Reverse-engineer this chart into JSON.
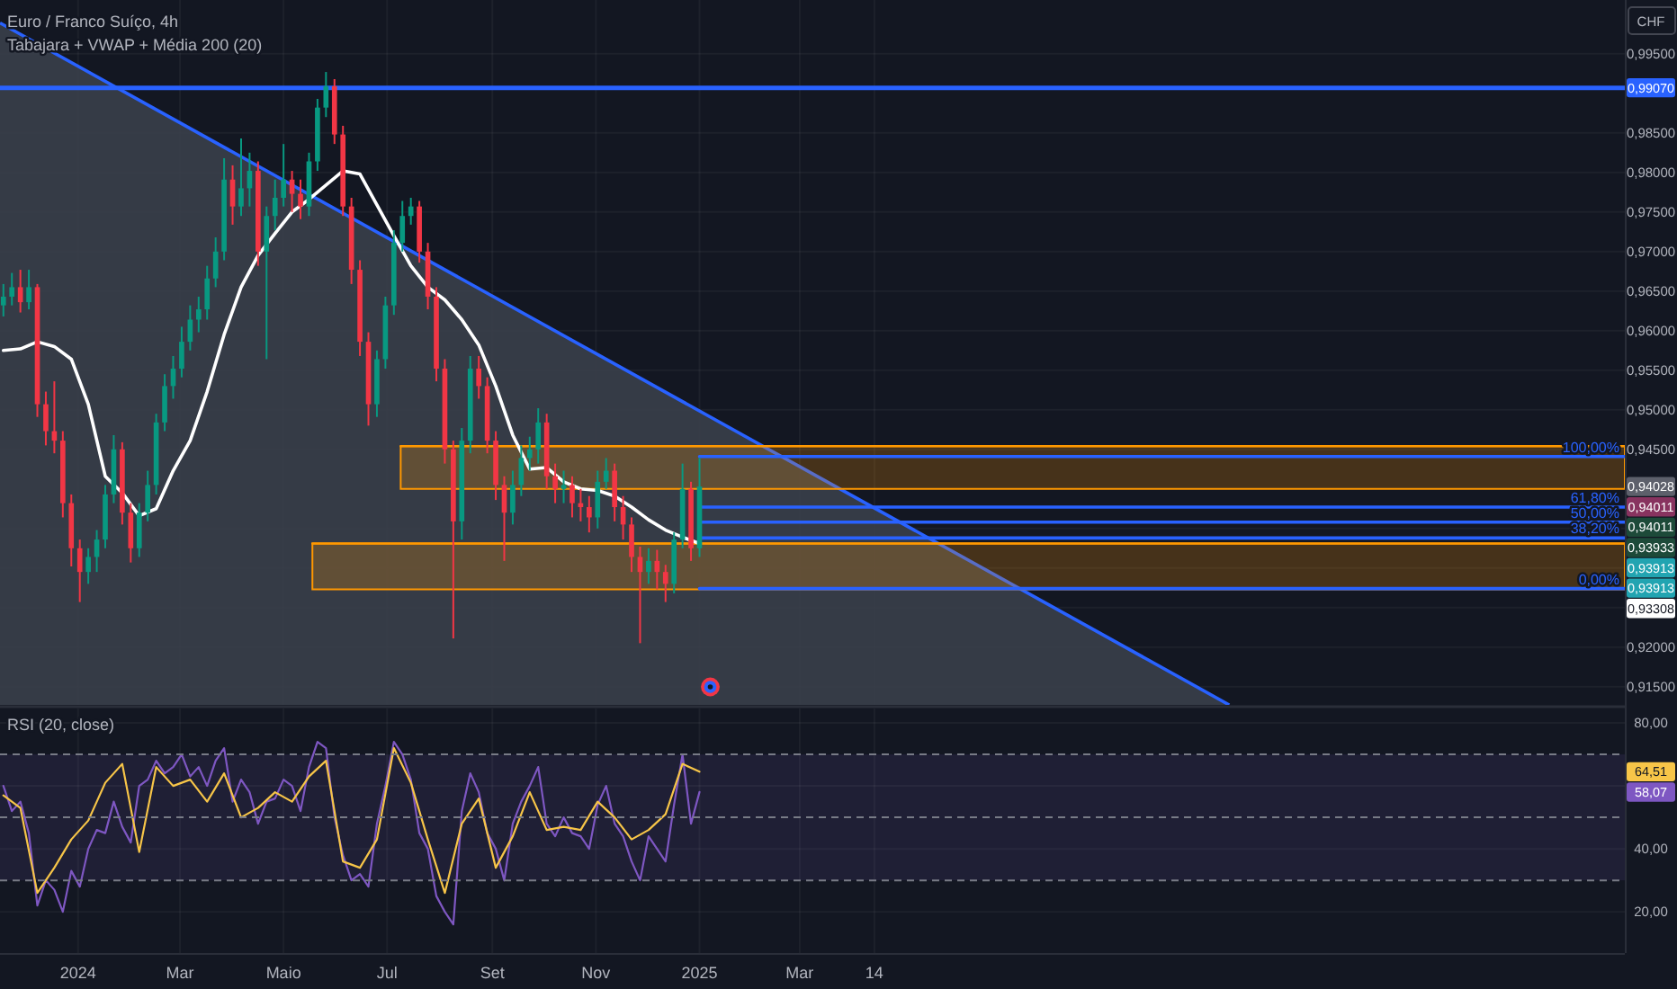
{
  "chart_data": [
    {
      "type": "candlestick",
      "title": "Euro / Franco Suíço, 4h",
      "subtitle": "Tabajara + VWAP + Média 200 (20)",
      "ylabel": "CHF",
      "x": [
        "2023-11-18",
        "2023-11-23",
        "2023-11-28",
        "2023-12-03",
        "2023-12-08",
        "2023-12-13",
        "2023-12-18",
        "2023-12-23",
        "2023-12-28",
        "2024-01-02",
        "2024-01-07",
        "2024-01-12",
        "2024-01-17",
        "2024-01-22",
        "2024-01-27",
        "2024-02-01",
        "2024-02-06",
        "2024-02-11",
        "2024-02-16",
        "2024-02-21",
        "2024-02-26",
        "2024-03-02",
        "2024-03-07",
        "2024-03-12",
        "2024-03-17",
        "2024-03-22",
        "2024-03-27",
        "2024-04-01",
        "2024-04-06",
        "2024-04-11",
        "2024-04-16",
        "2024-04-21",
        "2024-04-26",
        "2024-05-01",
        "2024-05-06",
        "2024-05-11",
        "2024-05-16",
        "2024-05-21",
        "2024-05-26",
        "2024-05-31",
        "2024-06-05",
        "2024-06-10",
        "2024-06-15",
        "2024-06-20",
        "2024-06-25",
        "2024-06-30",
        "2024-07-05",
        "2024-07-10",
        "2024-07-15",
        "2024-07-20",
        "2024-07-25",
        "2024-07-30",
        "2024-08-04",
        "2024-08-09",
        "2024-08-14",
        "2024-08-19",
        "2024-08-24",
        "2024-08-29",
        "2024-09-03",
        "2024-09-08",
        "2024-09-13",
        "2024-09-18",
        "2024-09-23",
        "2024-09-28",
        "2024-10-03",
        "2024-10-08",
        "2024-10-13",
        "2024-10-18",
        "2024-10-23",
        "2024-10-28",
        "2024-11-02",
        "2024-11-07",
        "2024-11-12",
        "2024-11-17",
        "2024-11-22",
        "2024-11-27",
        "2024-12-02",
        "2024-12-07",
        "2024-12-12",
        "2024-12-17",
        "2024-12-22",
        "2024-12-27",
        "2025-01-01"
      ],
      "ohlc": [
        [
          0.9632,
          0.9659,
          0.9618,
          0.9643
        ],
        [
          0.9643,
          0.9673,
          0.9632,
          0.9655
        ],
        [
          0.9655,
          0.9677,
          0.9623,
          0.9636
        ],
        [
          0.9636,
          0.9677,
          0.9627,
          0.9655
        ],
        [
          0.9655,
          0.9659,
          0.9491,
          0.9507
        ],
        [
          0.9507,
          0.9523,
          0.9455,
          0.9473
        ],
        [
          0.9473,
          0.9536,
          0.9445,
          0.9461
        ],
        [
          0.9461,
          0.9473,
          0.9364,
          0.9382
        ],
        [
          0.9382,
          0.9393,
          0.9302,
          0.9325
        ],
        [
          0.9325,
          0.9336,
          0.9257,
          0.9295
        ],
        [
          0.9295,
          0.9325,
          0.928,
          0.9314
        ],
        [
          0.9314,
          0.9348,
          0.9295,
          0.9336
        ],
        [
          0.9336,
          0.9405,
          0.9325,
          0.9393
        ],
        [
          0.9393,
          0.9468,
          0.9382,
          0.945
        ],
        [
          0.945,
          0.9459,
          0.9355,
          0.937
        ],
        [
          0.937,
          0.9382,
          0.9307,
          0.9325
        ],
        [
          0.9325,
          0.9382,
          0.9314,
          0.937
        ],
        [
          0.937,
          0.9423,
          0.9359,
          0.9405
        ],
        [
          0.9405,
          0.9495,
          0.9393,
          0.9484
        ],
        [
          0.9484,
          0.9545,
          0.9473,
          0.953
        ],
        [
          0.953,
          0.9568,
          0.9514,
          0.9552
        ],
        [
          0.9552,
          0.9605,
          0.9541,
          0.9586
        ],
        [
          0.9586,
          0.9632,
          0.9575,
          0.9614
        ],
        [
          0.9614,
          0.9643,
          0.9598,
          0.9627
        ],
        [
          0.9627,
          0.9682,
          0.9614,
          0.9666
        ],
        [
          0.9666,
          0.9718,
          0.9655,
          0.97
        ],
        [
          0.97,
          0.9818,
          0.9689,
          0.9791
        ],
        [
          0.9791,
          0.9809,
          0.9734,
          0.9757
        ],
        [
          0.9757,
          0.9843,
          0.9745,
          0.978
        ],
        [
          0.978,
          0.9825,
          0.9757,
          0.9802
        ],
        [
          0.9802,
          0.9814,
          0.9682,
          0.97
        ],
        [
          0.97,
          0.9757,
          0.9564,
          0.9745
        ],
        [
          0.9745,
          0.9791,
          0.9727,
          0.9768
        ],
        [
          0.9768,
          0.9836,
          0.9757,
          0.9791
        ],
        [
          0.9791,
          0.9802,
          0.975,
          0.9773
        ],
        [
          0.9773,
          0.9791,
          0.9741,
          0.9757
        ],
        [
          0.9757,
          0.9825,
          0.9745,
          0.9814
        ],
        [
          0.9814,
          0.9893,
          0.9802,
          0.9882
        ],
        [
          0.9882,
          0.9927,
          0.987,
          0.9909
        ],
        [
          0.9909,
          0.9918,
          0.9836,
          0.9848
        ],
        [
          0.9848,
          0.9859,
          0.9745,
          0.9757
        ],
        [
          0.9757,
          0.9768,
          0.9659,
          0.9677
        ],
        [
          0.9677,
          0.9689,
          0.9568,
          0.9586
        ],
        [
          0.9586,
          0.9598,
          0.948,
          0.9507
        ],
        [
          0.9507,
          0.9575,
          0.9491,
          0.9564
        ],
        [
          0.9564,
          0.9643,
          0.9552,
          0.9632
        ],
        [
          0.9632,
          0.9727,
          0.962,
          0.9711
        ],
        [
          0.9711,
          0.9764,
          0.97,
          0.9745
        ],
        [
          0.9745,
          0.9768,
          0.9734,
          0.9757
        ],
        [
          0.9757,
          0.9764,
          0.9686,
          0.97
        ],
        [
          0.97,
          0.9711,
          0.9627,
          0.9643
        ],
        [
          0.9643,
          0.9655,
          0.9536,
          0.9552
        ],
        [
          0.9552,
          0.9564,
          0.9432,
          0.945
        ],
        [
          0.945,
          0.9461,
          0.9211,
          0.9359
        ],
        [
          0.9359,
          0.9477,
          0.9336,
          0.9461
        ],
        [
          0.9461,
          0.9568,
          0.9445,
          0.9552
        ],
        [
          0.9552,
          0.9568,
          0.9514,
          0.953
        ],
        [
          0.953,
          0.9541,
          0.9445,
          0.9461
        ],
        [
          0.9461,
          0.9473,
          0.9386,
          0.9405
        ],
        [
          0.9405,
          0.9416,
          0.9309,
          0.937
        ],
        [
          0.937,
          0.9423,
          0.9355,
          0.9405
        ],
        [
          0.9405,
          0.9455,
          0.9391,
          0.9439
        ],
        [
          0.9439,
          0.9466,
          0.9423,
          0.945
        ],
        [
          0.945,
          0.9502,
          0.9432,
          0.9484
        ],
        [
          0.9484,
          0.9495,
          0.94,
          0.9416
        ],
        [
          0.9416,
          0.9432,
          0.9382,
          0.94
        ],
        [
          0.94,
          0.9423,
          0.9382,
          0.9405
        ],
        [
          0.9405,
          0.9416,
          0.9364,
          0.9382
        ],
        [
          0.9382,
          0.94,
          0.9359,
          0.9377
        ],
        [
          0.9377,
          0.9391,
          0.9345,
          0.9364
        ],
        [
          0.9364,
          0.9423,
          0.935,
          0.9409
        ],
        [
          0.9409,
          0.9439,
          0.94,
          0.9423
        ],
        [
          0.9423,
          0.9432,
          0.9359,
          0.9377
        ],
        [
          0.9377,
          0.9391,
          0.9336,
          0.9355
        ],
        [
          0.9355,
          0.9364,
          0.9295,
          0.9314
        ],
        [
          0.9314,
          0.9327,
          0.9205,
          0.9295
        ],
        [
          0.9295,
          0.9325,
          0.928,
          0.9309
        ],
        [
          0.9309,
          0.9323,
          0.9273,
          0.9295
        ],
        [
          0.9295,
          0.9304,
          0.9257,
          0.928
        ],
        [
          0.928,
          0.9345,
          0.9268,
          0.9336
        ],
        [
          0.9336,
          0.9432,
          0.9325,
          0.94
        ],
        [
          0.94,
          0.9409,
          0.9309,
          0.9325
        ],
        [
          0.9325,
          0.9439,
          0.9314,
          0.9403
        ]
      ],
      "series": [
        {
          "type": "area",
          "color": "#2962ff",
          "x": [
            "2023-11-16",
            "2025-11-09"
          ],
          "values": [
            0.9989,
            0.9127
          ]
        },
        {
          "type": "line",
          "color": "#ff9800",
          "x": [
            "2024-07-09",
            "2026-06-30"
          ],
          "values": [
            0.9454,
            0.9454
          ],
          "lower": [
            0.94,
            0.94
          ],
          "upper": [
            0.9454,
            0.9454
          ]
        },
        {
          "type": "line",
          "color": "#ff9800",
          "x": [
            "2024-05-18",
            "2026-06-30"
          ],
          "values": [
            0.9331,
            0.9331
          ],
          "lower": [
            0.9273,
            0.9273
          ],
          "upper": [
            0.9331,
            0.9331
          ]
        },
        {
          "type": "line",
          "name": "100,00%",
          "color": "#2962ff",
          "x": [
            "2025-01-01",
            "2026-06-30"
          ],
          "values": [
            0.9441,
            0.9441
          ]
        },
        {
          "type": "line",
          "name": "61,80%",
          "color": "#2962ff",
          "x": [
            "2025-01-01",
            "2026-06-30"
          ],
          "values": [
            0.9377,
            0.9377
          ]
        },
        {
          "type": "line",
          "name": "50,00%",
          "color": "#2962ff",
          "x": [
            "2025-01-01",
            "2026-06-30"
          ],
          "values": [
            0.9358,
            0.9358
          ]
        },
        {
          "type": "line",
          "name": "38,20%",
          "color": "#2962ff",
          "x": [
            "2025-01-01",
            "2026-06-30"
          ],
          "values": [
            0.9338,
            0.9338
          ]
        },
        {
          "type": "line",
          "name": "0,00%",
          "color": "#2962ff",
          "x": [
            "2025-01-01",
            "2026-06-30"
          ],
          "values": [
            0.9274,
            0.9274
          ]
        },
        {
          "type": "line",
          "color": "#ffffff",
          "x": [
            "2023-11-18",
            "2023-11-28",
            "2023-12-08",
            "2023-12-18",
            "2023-12-28",
            "2024-01-07",
            "2024-01-17",
            "2024-01-27",
            "2024-02-06",
            "2024-02-16",
            "2024-02-26",
            "2024-03-07",
            "2024-03-17",
            "2024-03-27",
            "2024-04-06",
            "2024-04-16",
            "2024-04-26",
            "2024-05-06",
            "2024-05-16",
            "2024-05-26",
            "2024-06-05",
            "2024-06-15",
            "2024-06-25",
            "2024-07-05",
            "2024-07-15",
            "2024-07-25",
            "2024-08-04",
            "2024-08-14",
            "2024-08-24",
            "2024-09-03",
            "2024-09-13",
            "2024-09-23",
            "2024-10-03",
            "2024-10-13",
            "2024-10-23",
            "2024-11-02",
            "2024-11-12",
            "2024-11-22",
            "2024-12-02",
            "2024-12-12",
            "2024-12-22",
            "2025-01-01"
          ],
          "values": [
            0.9575,
            0.9577,
            0.9586,
            0.958,
            0.9564,
            0.9507,
            0.9416,
            0.9395,
            0.9366,
            0.9375,
            0.9423,
            0.9461,
            0.9523,
            0.9595,
            0.9655,
            0.9695,
            0.9723,
            0.975,
            0.9766,
            0.9784,
            0.9802,
            0.9798,
            0.9759,
            0.972,
            0.9682,
            0.9655,
            0.9639,
            0.9614,
            0.9582,
            0.953,
            0.9468,
            0.9425,
            0.9427,
            0.9409,
            0.94,
            0.9398,
            0.9391,
            0.9377,
            0.9361,
            0.9348,
            0.9339,
            0.9331
          ]
        }
      ],
      "xlim": [
        "2023-11-16",
        "2026-06-30"
      ],
      "xticks": [
        {
          "value": "2024-01-01",
          "label": null
        },
        {
          "value": "2024-03-01",
          "label": null
        },
        {
          "value": "2024-05-01",
          "label": null
        },
        {
          "value": "2024-07-01",
          "label": null
        },
        {
          "value": "2024-09-01",
          "label": null
        },
        {
          "value": "2024-11-01",
          "label": null
        },
        {
          "value": "2025-01-01",
          "label": null
        },
        {
          "value": "2025-03-01",
          "label": null
        },
        {
          "value": "2025-04-14",
          "label": null
        }
      ],
      "ylim": [
        0.9127,
        1.0018
      ],
      "yticks": [
        {
          "value": 0.995,
          "label": "0,99500"
        },
        {
          "value": 0.985,
          "label": "0,98500"
        },
        {
          "value": 0.98,
          "label": "0,98000"
        },
        {
          "value": 0.975,
          "label": "0,97500"
        },
        {
          "value": 0.97,
          "label": "0,97000"
        },
        {
          "value": 0.965,
          "label": "0,96500"
        },
        {
          "value": 0.96,
          "label": "0,96000"
        },
        {
          "value": 0.955,
          "label": "0,95500"
        },
        {
          "value": 0.95,
          "label": "0,95000"
        },
        {
          "value": 0.945,
          "label": "0,94500"
        },
        {
          "value": 0.935,
          "label": null
        },
        {
          "value": 0.93,
          "label": null
        },
        {
          "value": 0.925,
          "label": null
        },
        {
          "value": 0.92,
          "label": "0,92000"
        },
        {
          "value": 0.915,
          "label": "0,91500"
        }
      ],
      "grid": true,
      "tick_labels": "y",
      "ref_lines": [
        {
          "axis": "y",
          "value": 0.9907,
          "label": "0,99070",
          "color": "#2962ff"
        }
      ],
      "annotations": [
        "0,94028",
        "0,94011",
        "0,94011",
        "0,93933",
        "0,93913",
        "0,93913",
        "0,93308"
      ]
    },
    {
      "type": "line",
      "title": "RSI (20, close)",
      "x": [
        "2023-11-18",
        "2023-11-23",
        "2023-11-28",
        "2023-12-03",
        "2023-12-08",
        "2023-12-13",
        "2023-12-18",
        "2023-12-23",
        "2023-12-28",
        "2024-01-02",
        "2024-01-07",
        "2024-01-12",
        "2024-01-17",
        "2024-01-22",
        "2024-01-27",
        "2024-02-01",
        "2024-02-06",
        "2024-02-11",
        "2024-02-16",
        "2024-02-21",
        "2024-02-26",
        "2024-03-02",
        "2024-03-07",
        "2024-03-12",
        "2024-03-17",
        "2024-03-22",
        "2024-03-27",
        "2024-04-01",
        "2024-04-06",
        "2024-04-11",
        "2024-04-16",
        "2024-04-21",
        "2024-04-26",
        "2024-05-01",
        "2024-05-06",
        "2024-05-11",
        "2024-05-16",
        "2024-05-21",
        "2024-05-26",
        "2024-05-31",
        "2024-06-05",
        "2024-06-10",
        "2024-06-15",
        "2024-06-20",
        "2024-06-25",
        "2024-06-30",
        "2024-07-05",
        "2024-07-10",
        "2024-07-15",
        "2024-07-20",
        "2024-07-25",
        "2024-07-30",
        "2024-08-04",
        "2024-08-09",
        "2024-08-14",
        "2024-08-19",
        "2024-08-24",
        "2024-08-29",
        "2024-09-03",
        "2024-09-08",
        "2024-09-13",
        "2024-09-18",
        "2024-09-23",
        "2024-09-28",
        "2024-10-03",
        "2024-10-08",
        "2024-10-13",
        "2024-10-18",
        "2024-10-23",
        "2024-10-28",
        "2024-11-02",
        "2024-11-07",
        "2024-11-12",
        "2024-11-17",
        "2024-11-22",
        "2024-11-27",
        "2024-12-02",
        "2024-12-07",
        "2024-12-12",
        "2024-12-17",
        "2024-12-22",
        "2024-12-27",
        "2025-01-01"
      ],
      "series": [
        {
          "color": "#7e57c2",
          "values": [
            60,
            52,
            55,
            45,
            22,
            30,
            27,
            20,
            33,
            28,
            40,
            46,
            45,
            55,
            47,
            42,
            60,
            62,
            68,
            64,
            66,
            70,
            63,
            66,
            60,
            68,
            72,
            55,
            62,
            58,
            48,
            55,
            56,
            62,
            60,
            52,
            66,
            74,
            72,
            50,
            38,
            30,
            32,
            28,
            48,
            60,
            74,
            70,
            62,
            45,
            40,
            25,
            20,
            16,
            52,
            64,
            58,
            45,
            40,
            30,
            48,
            55,
            60,
            66,
            48,
            44,
            50,
            45,
            44,
            40,
            54,
            60,
            48,
            44,
            36,
            30,
            44,
            40,
            36,
            54,
            70,
            48,
            58.07
          ]
        },
        {
          "color": "#f7c548",
          "x": [
            "2023-11-18",
            "2023-11-28",
            "2023-12-08",
            "2023-12-18",
            "2023-12-28",
            "2024-01-07",
            "2024-01-17",
            "2024-01-27",
            "2024-02-06",
            "2024-02-16",
            "2024-02-26",
            "2024-03-07",
            "2024-03-17",
            "2024-03-27",
            "2024-04-06",
            "2024-04-16",
            "2024-04-26",
            "2024-05-06",
            "2024-05-16",
            "2024-05-26",
            "2024-06-05",
            "2024-06-15",
            "2024-06-25",
            "2024-07-05",
            "2024-07-15",
            "2024-07-25",
            "2024-08-04",
            "2024-08-14",
            "2024-08-24",
            "2024-09-03",
            "2024-09-13",
            "2024-09-23",
            "2024-10-03",
            "2024-10-13",
            "2024-10-23",
            "2024-11-02",
            "2024-11-12",
            "2024-11-22",
            "2024-12-02",
            "2024-12-12",
            "2024-12-22",
            "2025-01-01"
          ],
          "values": [
            57,
            53,
            26,
            34,
            43,
            49,
            61,
            67,
            39,
            66,
            60,
            62,
            55,
            64,
            50,
            53,
            58,
            55,
            63,
            68,
            36,
            34,
            43,
            72,
            61,
            43,
            26,
            48,
            56,
            34,
            44,
            58,
            46,
            47,
            46,
            55,
            50,
            43,
            46,
            51,
            67,
            64.51
          ]
        }
      ],
      "xlim": [
        "2023-11-16",
        "2026-06-30"
      ],
      "xticks": [
        {
          "value": "2024-01-01",
          "label": "2024"
        },
        {
          "value": "2024-03-01",
          "label": "Mar"
        },
        {
          "value": "2024-05-01",
          "label": "Maio"
        },
        {
          "value": "2024-07-01",
          "label": "Jul"
        },
        {
          "value": "2024-09-01",
          "label": "Set"
        },
        {
          "value": "2024-11-01",
          "label": "Nov"
        },
        {
          "value": "2025-01-01",
          "label": "2025"
        },
        {
          "value": "2025-03-01",
          "label": "Mar"
        },
        {
          "value": "2025-04-14",
          "label": "14"
        }
      ],
      "ylim": [
        6.9,
        84.6
      ],
      "yticks": [
        {
          "value": 80,
          "label": "80,00"
        },
        {
          "value": 60,
          "label": null
        },
        {
          "value": 40,
          "label": "40,00"
        },
        {
          "value": 20,
          "label": "20,00"
        }
      ],
      "grid": true,
      "bands": [
        {
          "axis": "y",
          "from": 30,
          "to": 70,
          "color": "#7e57c2"
        }
      ],
      "ref_lines": [
        {
          "axis": "y",
          "value": 70,
          "color": "#787b86",
          "line_style": "dashed"
        },
        {
          "axis": "y",
          "value": 50,
          "color": "#787b86",
          "line_style": "dashed"
        },
        {
          "axis": "y",
          "value": 30,
          "color": "#787b86",
          "line_style": "dashed"
        }
      ],
      "annotations": [
        {
          "text": "64,51",
          "y": 64.51
        },
        {
          "text": "58,07",
          "y": 58.07
        }
      ]
    }
  ]
}
